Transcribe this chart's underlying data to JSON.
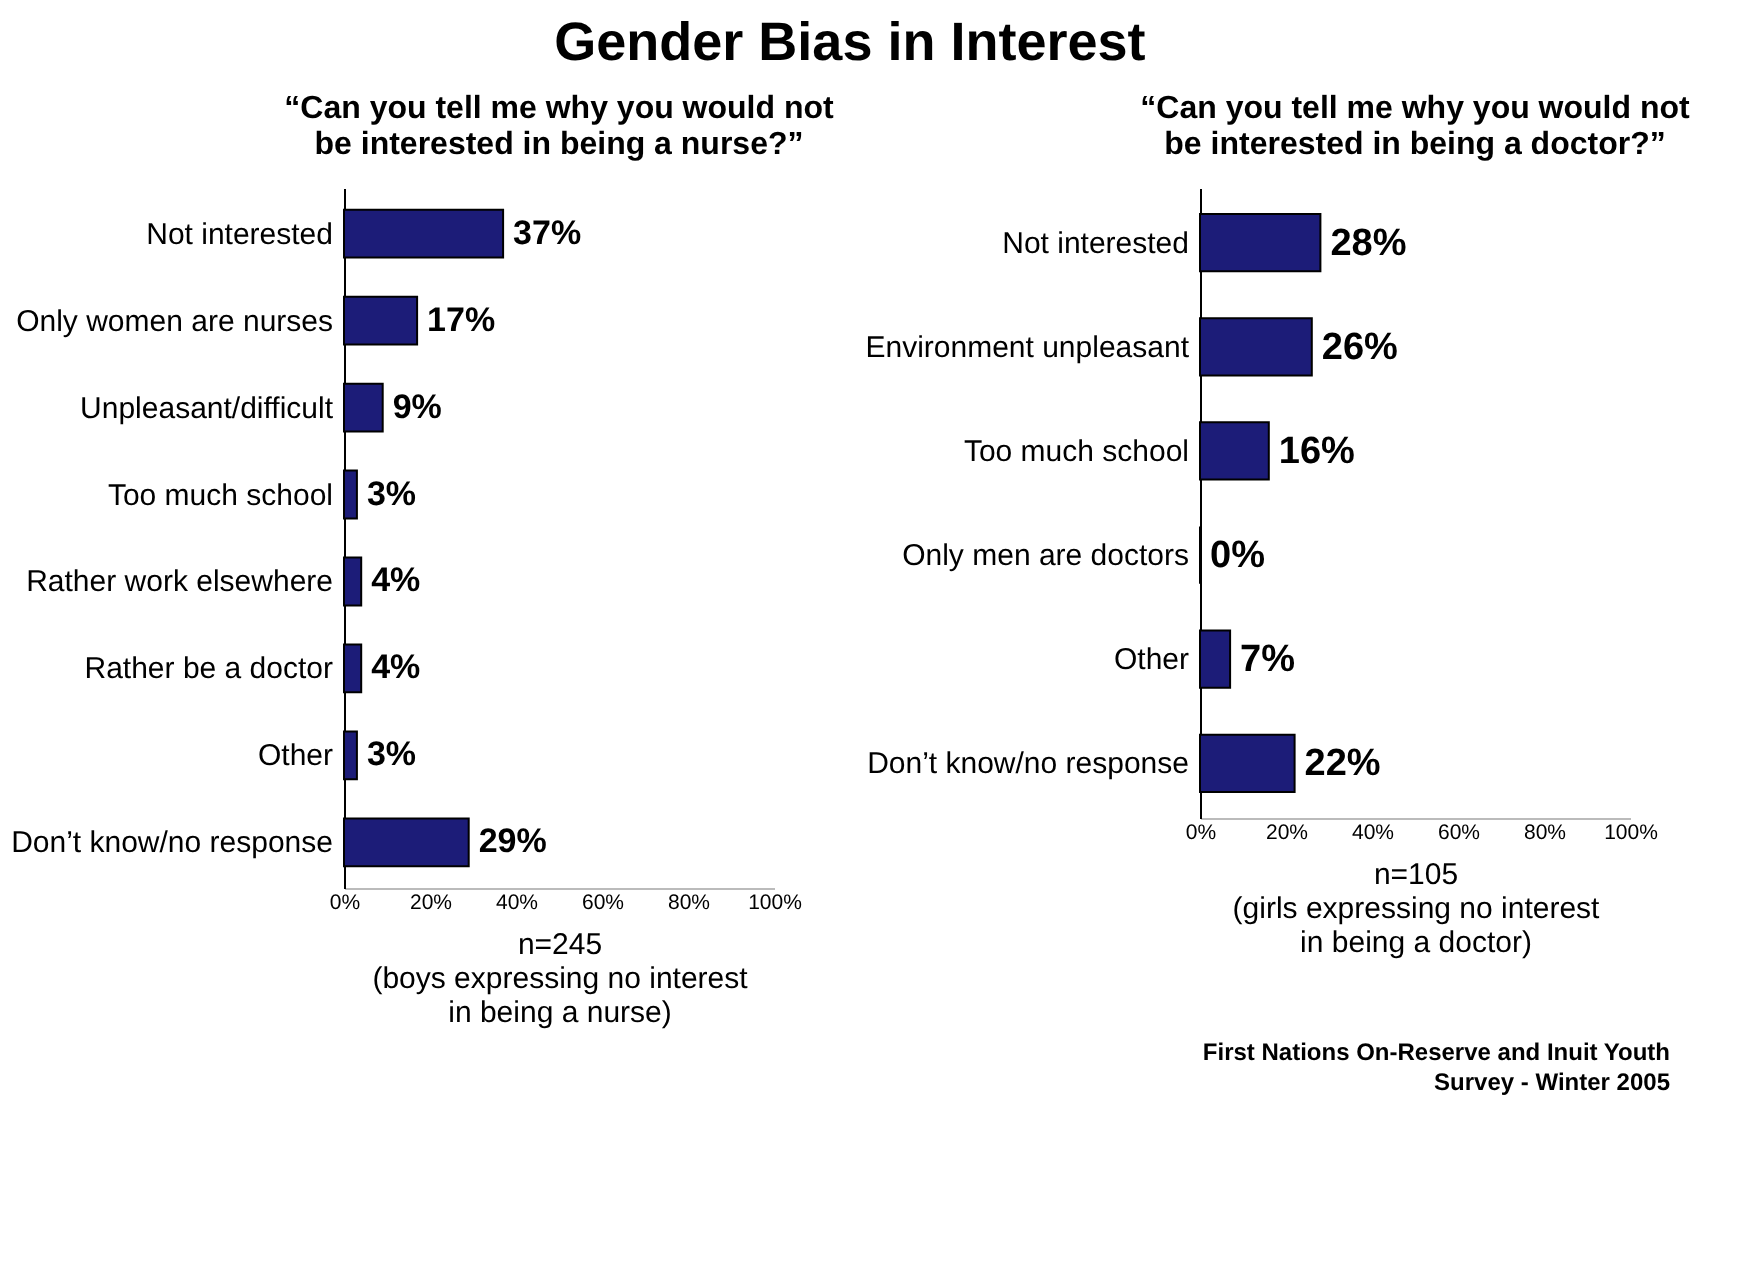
{
  "chart_data": [
    {
      "type": "bar",
      "orientation": "horizontal",
      "title": "Gender Bias in Interest",
      "subtitle": "“Can you tell me why you would not be interested in being a nurse?”",
      "categories": [
        "Not interested",
        "Only women are nurses",
        "Unpleasant/difficult",
        "Too much school",
        "Rather work elsewhere",
        "Rather be a doctor",
        "Other",
        "Don’t know/no response"
      ],
      "values": [
        37,
        17,
        9,
        3,
        4,
        4,
        3,
        29
      ],
      "color": "#1c1c78",
      "value_labels": [
        "37%",
        "17%",
        "9%",
        "3%",
        "4%",
        "4%",
        "3%",
        "29%"
      ],
      "xlim": [
        0,
        100
      ],
      "xticks": [
        {
          "value": 0,
          "label": "0%"
        },
        {
          "value": 20,
          "label": "20%"
        },
        {
          "value": 40,
          "label": "40%"
        },
        {
          "value": 60,
          "label": "60%"
        },
        {
          "value": 80,
          "label": "80%"
        },
        {
          "value": 100,
          "label": "100%"
        }
      ],
      "annotations": [
        "n=245\n(boys expressing no interest\nin being a nurse)"
      ]
    },
    {
      "type": "bar",
      "orientation": "horizontal",
      "subtitle": "“Can you tell me why you would not be interested in being a doctor?”",
      "categories": [
        "Not interested",
        "Environment unpleasant",
        "Too much school",
        "Only men are doctors",
        "Other",
        "Don’t know/no response"
      ],
      "values": [
        28,
        26,
        16,
        0,
        7,
        22
      ],
      "color": "#1c1c78",
      "value_labels": [
        "28%",
        "26%",
        "16%",
        "0%",
        "7%",
        "22%"
      ],
      "xlim": [
        0,
        100
      ],
      "xticks": [
        {
          "value": 0,
          "label": "0%"
        },
        {
          "value": 20,
          "label": "20%"
        },
        {
          "value": 40,
          "label": "40%"
        },
        {
          "value": 60,
          "label": "60%"
        },
        {
          "value": 80,
          "label": "80%"
        },
        {
          "value": 100,
          "label": "100%"
        }
      ],
      "annotations": [
        "n=105\n(girls expressing no interest\nin being a doctor)",
        "First Nations On-Reserve and Inuit Youth\nSurvey - Winter 2005"
      ]
    }
  ]
}
